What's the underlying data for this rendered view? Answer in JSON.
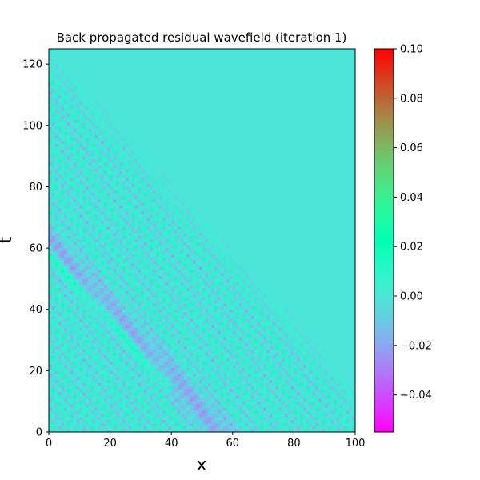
{
  "chart_data": {
    "type": "heatmap",
    "title": "Back propagated residual wavefield (iteration 1)",
    "xlabel": "x",
    "ylabel": "t",
    "xlim": [
      0,
      100
    ],
    "ylim": [
      0,
      125
    ],
    "x_ticks": [
      0,
      20,
      40,
      60,
      80,
      100
    ],
    "y_ticks": [
      0,
      20,
      40,
      60,
      80,
      100,
      120
    ],
    "colormap": "rainbow",
    "colorbar": {
      "vmin": -0.055,
      "vmax": 0.1,
      "ticks": [
        -0.04,
        -0.02,
        0.0,
        0.02,
        0.04,
        0.06,
        0.08,
        0.1
      ],
      "tick_labels": [
        "−0.04",
        "−0.02",
        "0.00",
        "0.02",
        "0.04",
        "0.06",
        "0.08",
        "0.10"
      ]
    },
    "background_value": 0.0,
    "wavefront_edge": [
      [
        0,
        125
      ],
      [
        100,
        15
      ]
    ],
    "features": {
      "min_value": -0.05,
      "max_value": 0.04,
      "description_points": [
        {
          "x": 2,
          "t": 56,
          "value": 0.035
        },
        {
          "x": 30,
          "t": 42,
          "value": -0.05
        },
        {
          "x": 45,
          "t": 15,
          "value": 0.03
        },
        {
          "x": 55,
          "t": 3,
          "value": 0.04
        }
      ]
    }
  }
}
